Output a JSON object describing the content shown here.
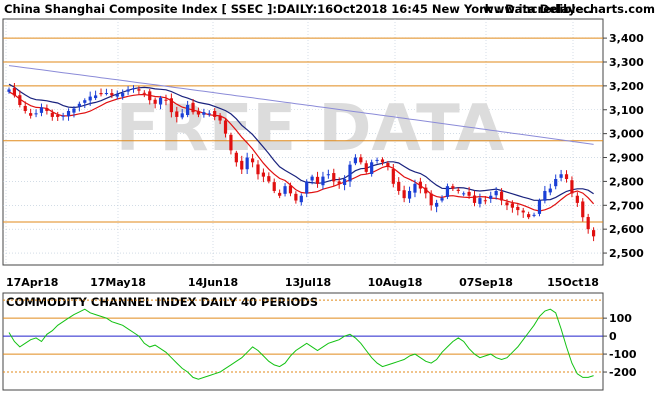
{
  "header": {
    "title": "China Shanghai Composite Index [ SSEC ]:DAILY:16Oct2018 16:45 New York : Data Delaye..",
    "site": "www.incrediblecharts.com"
  },
  "watermark": "FREE DATA",
  "colors": {
    "up_candle": "#1a3fd6",
    "down_candle": "#e01010",
    "ma_short": "#e01010",
    "ma_medium": "#1a237e",
    "ma_long": "#8b8bd8",
    "support_lines": "#e08a1a",
    "cci_line": "#13c213",
    "cci_zero": "#2222cc",
    "cci_levels": "#e08a1a",
    "grid": "#b8c8d8",
    "text": "#000000"
  },
  "chart_data": [
    {
      "type": "candlestick",
      "title": "China Shanghai Composite Index [ SSEC ]:DAILY:16Oct2018 16:45 New York : Data Delaye..",
      "ylim": [
        2450,
        3480
      ],
      "y_ticks": [
        "3,400",
        "3,300",
        "3,200",
        "3,100",
        "3,000",
        "2,900",
        "2,800",
        "2,700",
        "2,600",
        "2,500"
      ],
      "x_ticks": [
        "17Apr18",
        "17May18",
        "14Jun18",
        "13Jul18",
        "10Aug18",
        "07Sep18",
        "15Oct18"
      ],
      "horizontal_levels": [
        3400,
        3300,
        3200,
        2970,
        2630
      ],
      "grid": true,
      "closes": [
        3185,
        3160,
        3120,
        3095,
        3075,
        3085,
        3110,
        3095,
        3070,
        3070,
        3075,
        3095,
        3105,
        3125,
        3140,
        3155,
        3160,
        3165,
        3170,
        3160,
        3165,
        3170,
        3185,
        3190,
        3180,
        3170,
        3140,
        3125,
        3150,
        3140,
        3090,
        3070,
        3085,
        3120,
        3090,
        3080,
        3090,
        3085,
        3070,
        3055,
        3000,
        2930,
        2880,
        2850,
        2900,
        2880,
        2830,
        2820,
        2800,
        2760,
        2740,
        2780,
        2750,
        2720,
        2740,
        2800,
        2820,
        2790,
        2820,
        2830,
        2800,
        2790,
        2810,
        2870,
        2900,
        2880,
        2840,
        2880,
        2890,
        2880,
        2860,
        2790,
        2760,
        2730,
        2760,
        2790,
        2770,
        2750,
        2700,
        2710,
        2730,
        2780,
        2770,
        2760,
        2750,
        2740,
        2710,
        2730,
        2720,
        2740,
        2760,
        2720,
        2700,
        2690,
        2680,
        2670,
        2650,
        2660,
        2720,
        2760,
        2770,
        2810,
        2830,
        2810,
        2750,
        2710,
        2650,
        2600,
        2570
      ],
      "series": [
        {
          "name": "",
          "kind": "ma_short"
        },
        {
          "name": "",
          "kind": "ma_medium"
        },
        {
          "name": "",
          "kind": "ma_long"
        }
      ]
    },
    {
      "type": "line",
      "title": "COMMODITY CHANNEL INDEX DAILY 40 PERIODS",
      "ylim": [
        -300,
        240
      ],
      "y_ticks": [
        "100",
        "0",
        "-100",
        "-200"
      ],
      "horizontal_levels": [
        100,
        -100,
        200,
        -200
      ],
      "zero_line": 0,
      "values": [
        20,
        -30,
        -60,
        -40,
        -20,
        -10,
        -30,
        10,
        30,
        60,
        80,
        100,
        120,
        135,
        150,
        130,
        120,
        110,
        100,
        80,
        70,
        60,
        40,
        20,
        0,
        -40,
        -60,
        -50,
        -70,
        -90,
        -120,
        -150,
        -180,
        -200,
        -230,
        -240,
        -230,
        -220,
        -210,
        -200,
        -180,
        -160,
        -140,
        -120,
        -90,
        -60,
        -80,
        -110,
        -140,
        -160,
        -170,
        -150,
        -110,
        -80,
        -60,
        -40,
        -60,
        -80,
        -60,
        -40,
        -30,
        -20,
        0,
        10,
        -10,
        -40,
        -80,
        -120,
        -150,
        -170,
        -160,
        -150,
        -140,
        -130,
        -110,
        -100,
        -120,
        -140,
        -150,
        -130,
        -90,
        -60,
        -30,
        -10,
        -30,
        -70,
        -100,
        -120,
        -110,
        -100,
        -120,
        -130,
        -120,
        -90,
        -60,
        -20,
        20,
        60,
        110,
        140,
        150,
        130,
        40,
        -60,
        -150,
        -210,
        -230,
        -230,
        -220
      ],
      "series": [
        {
          "name": "",
          "kind": "cci_line"
        }
      ]
    }
  ]
}
